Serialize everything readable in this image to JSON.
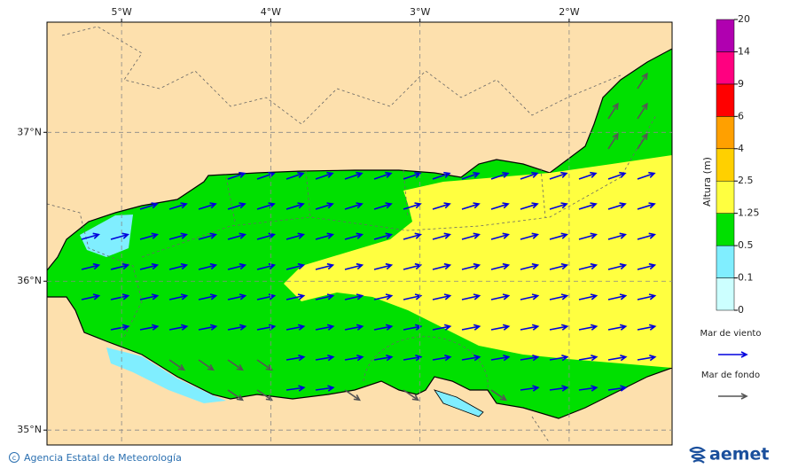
{
  "map": {
    "xlim": [
      -5.5,
      -1.31
    ],
    "ylim": [
      34.9,
      37.74
    ],
    "lon_ticks": [
      {
        "value": -5,
        "label": "5°W"
      },
      {
        "value": -4,
        "label": "4°W"
      },
      {
        "value": -3,
        "label": "3°W"
      },
      {
        "value": -2,
        "label": "2°W"
      }
    ],
    "lat_ticks": [
      {
        "value": 37,
        "label": "37°N"
      },
      {
        "value": 36,
        "label": "36°N"
      },
      {
        "value": 35,
        "label": "35°N"
      }
    ],
    "grid": true
  },
  "colorbar": {
    "label": "Altura (m)",
    "levels": [
      0,
      0.1,
      0.5,
      1.25,
      2.5,
      4,
      6,
      9,
      14,
      20
    ],
    "colors": [
      "#ccffff",
      "#80eeff",
      "#00e000",
      "#ffff40",
      "#ffd000",
      "#ffa000",
      "#ff0000",
      "#ff0080",
      "#b000b0"
    ]
  },
  "legend": {
    "items": [
      {
        "name": "Mar de viento",
        "color": "#0000dd"
      },
      {
        "name": "Mar de fondo",
        "color": "#555555"
      }
    ]
  },
  "footer": {
    "credit": "Agencia Estatal de Meteorología",
    "logo": "aemet"
  }
}
